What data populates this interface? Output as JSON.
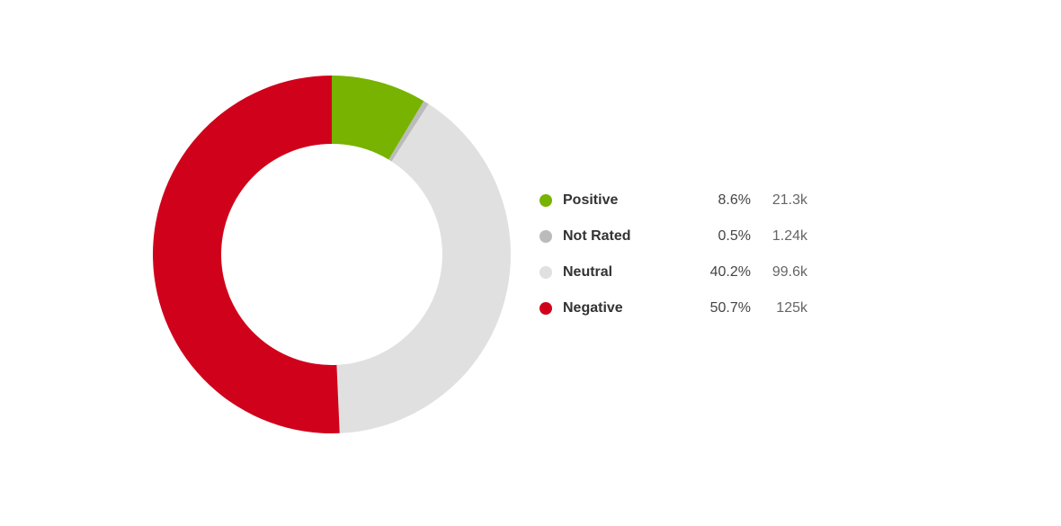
{
  "chart_data": {
    "type": "pie",
    "style": "donut",
    "legend_position": "right",
    "slices": [
      {
        "label": "Positive",
        "percent": 8.6,
        "percent_text": "8.6%",
        "count_text": "21.3k",
        "color": "#77b300"
      },
      {
        "label": "Not Rated",
        "percent": 0.5,
        "percent_text": "0.5%",
        "count_text": "1.24k",
        "color": "#bbbbbb"
      },
      {
        "label": "Neutral",
        "percent": 40.2,
        "percent_text": "40.2%",
        "count_text": "99.6k",
        "color": "#e0e0e0"
      },
      {
        "label": "Negative",
        "percent": 50.7,
        "percent_text": "50.7%",
        "count_text": "125k",
        "color": "#d0021b"
      }
    ]
  }
}
